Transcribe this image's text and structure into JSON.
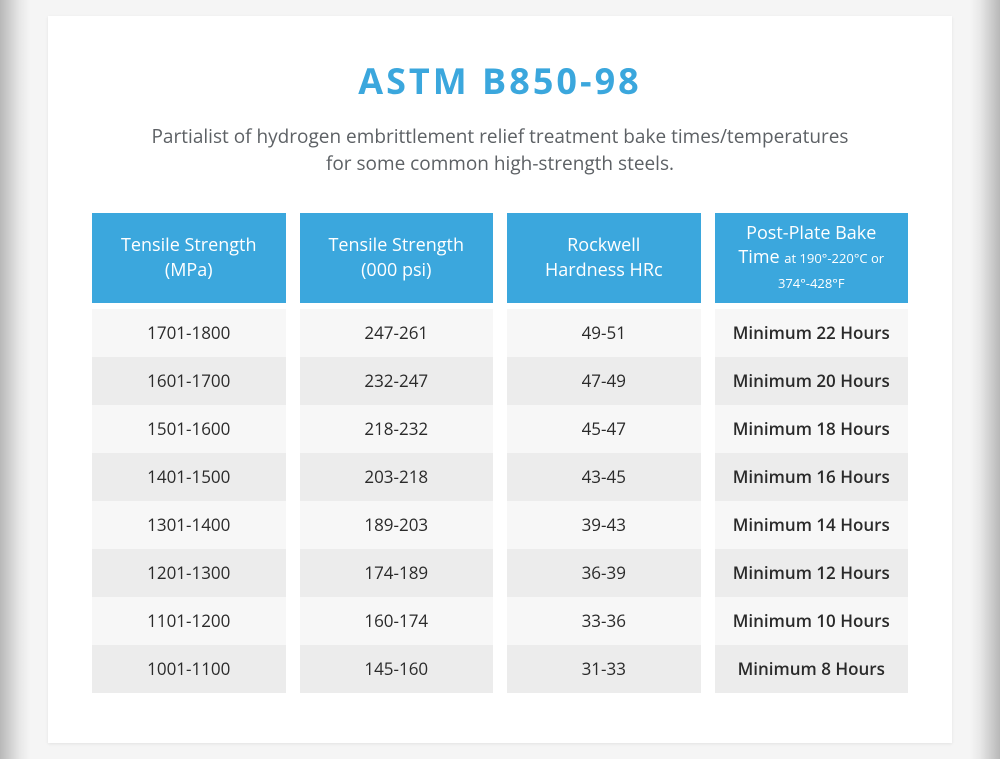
{
  "title": "ASTM B850-98",
  "subtitle_line1": "Partialist of hydrogen embrittlement relief treatment bake times/temperatures",
  "subtitle_line2": "for some common high-strength steels.",
  "colors": {
    "accent": "#3ba7dd",
    "text_muted": "#5d6165",
    "text_dark": "#2a2a2a",
    "row_odd": "#ececec",
    "row_even": "#f7f7f7",
    "card_bg": "#ffffff"
  },
  "table": {
    "columns": [
      {
        "header_main": "Tensile Strength",
        "header_sub": "(MPa)",
        "sub_small": false,
        "cells": [
          "1701-1800",
          "1601-1700",
          "1501-1600",
          "1401-1500",
          "1301-1400",
          "1201-1300",
          "1101-1200",
          "1001-1100"
        ]
      },
      {
        "header_main": "Tensile Strength",
        "header_sub": "(000 psi)",
        "sub_small": false,
        "cells": [
          "247-261",
          "232-247",
          "218-232",
          "203-218",
          "189-203",
          "174-189",
          "160-174",
          "145-160"
        ]
      },
      {
        "header_main": "Rockwell",
        "header_sub": "Hardness HRc",
        "sub_small": false,
        "cells": [
          "49-51",
          "47-49",
          "45-47",
          "43-45",
          "39-43",
          "36-39",
          "33-36",
          "31-33"
        ]
      },
      {
        "header_main": "Post-Plate Bake",
        "header_sub": "Time",
        "sub_extra": "at 190°-220°C or 374°-428°F",
        "sub_small": true,
        "cells": [
          "Minimum 22 Hours",
          "Minimum 20 Hours",
          "Minimum 18 Hours",
          "Minimum 16 Hours",
          "Minimum 14 Hours",
          "Minimum 12 Hours",
          "Minimum 10 Hours",
          "Minimum 8 Hours"
        ]
      }
    ]
  }
}
